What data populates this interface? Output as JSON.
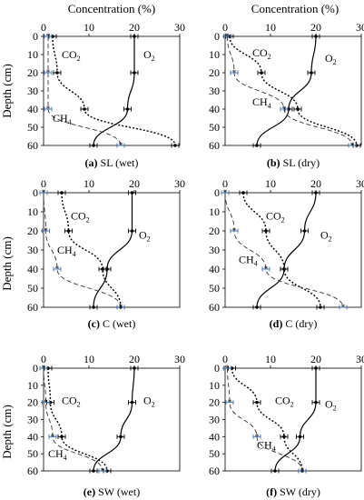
{
  "figure": {
    "top_axis_label": "Concentration (%)",
    "y_axis_label": "Depth (cm)",
    "series_labels": {
      "co2": "CO2",
      "o2": "O2",
      "ch4": "CH4"
    }
  },
  "chart_data": [
    {
      "type": "line",
      "caption": {
        "letter": "(a)",
        "text": "SL (wet)"
      },
      "xlim": [
        0,
        30
      ],
      "ylim": [
        0,
        60
      ],
      "x_ticks": [
        0,
        10,
        20,
        30
      ],
      "y_ticks": [
        0,
        10,
        20,
        30,
        40,
        50,
        60
      ],
      "series": [
        {
          "name": "O2",
          "depth": [
            0,
            20,
            40,
            60
          ],
          "values": [
            20,
            20,
            18.5,
            11
          ]
        },
        {
          "name": "CO2",
          "depth": [
            0,
            20,
            40,
            60
          ],
          "values": [
            2,
            3,
            9,
            29
          ]
        },
        {
          "name": "CH4",
          "depth": [
            0,
            20,
            40,
            60
          ],
          "values": [
            1,
            1,
            1,
            17
          ]
        }
      ]
    },
    {
      "type": "line",
      "caption": {
        "letter": "(b)",
        "text": "SL (dry)"
      },
      "xlim": [
        0,
        30
      ],
      "ylim": [
        0,
        60
      ],
      "x_ticks": [
        0,
        10,
        20,
        30
      ],
      "y_ticks": [
        0,
        10,
        20,
        30,
        40,
        50,
        60
      ],
      "series": [
        {
          "name": "O2",
          "depth": [
            0,
            20,
            40,
            60
          ],
          "values": [
            20,
            19,
            14,
            7
          ]
        },
        {
          "name": "CO2",
          "depth": [
            0,
            20,
            40,
            60
          ],
          "values": [
            1,
            8,
            16,
            29
          ]
        },
        {
          "name": "CH4",
          "depth": [
            0,
            20,
            40,
            60
          ],
          "values": [
            0.5,
            2,
            13,
            28
          ]
        }
      ]
    },
    {
      "type": "line",
      "caption": {
        "letter": "(c)",
        "text": "C (wet)"
      },
      "xlim": [
        0,
        30
      ],
      "ylim": [
        0,
        60
      ],
      "x_ticks": [
        0,
        10,
        20,
        30
      ],
      "y_ticks": [
        0,
        10,
        20,
        30,
        40,
        50,
        60
      ],
      "series": [
        {
          "name": "O2",
          "depth": [
            0,
            20,
            40,
            60
          ],
          "values": [
            19.5,
            19.5,
            14,
            11
          ]
        },
        {
          "name": "CO2",
          "depth": [
            0,
            20,
            40,
            60
          ],
          "values": [
            4,
            5.5,
            13,
            17
          ]
        },
        {
          "name": "CH4",
          "depth": [
            0,
            20,
            40,
            60
          ],
          "values": [
            0,
            0.5,
            3,
            17
          ]
        }
      ]
    },
    {
      "type": "line",
      "caption": {
        "letter": "(d)",
        "text": "C (dry)"
      },
      "xlim": [
        0,
        30
      ],
      "ylim": [
        0,
        60
      ],
      "x_ticks": [
        0,
        10,
        20,
        30
      ],
      "y_ticks": [
        0,
        10,
        20,
        30,
        40,
        50,
        60
      ],
      "series": [
        {
          "name": "O2",
          "depth": [
            0,
            20,
            40,
            60
          ],
          "values": [
            20,
            17.5,
            13,
            7
          ]
        },
        {
          "name": "CO2",
          "depth": [
            0,
            20,
            40,
            60
          ],
          "values": [
            4,
            9,
            13,
            21
          ]
        },
        {
          "name": "CH4",
          "depth": [
            0,
            20,
            40,
            60
          ],
          "values": [
            0,
            2,
            9,
            26
          ]
        }
      ]
    },
    {
      "type": "line",
      "caption": {
        "letter": "(e)",
        "text": "SW (wet)"
      },
      "xlim": [
        0,
        30
      ],
      "ylim": [
        0,
        60
      ],
      "x_ticks": [
        0,
        10,
        20,
        30
      ],
      "y_ticks": [
        0,
        10,
        20,
        30,
        40,
        50,
        60
      ],
      "series": [
        {
          "name": "O2",
          "depth": [
            0,
            20,
            40,
            60
          ],
          "values": [
            20,
            19.5,
            17,
            11
          ]
        },
        {
          "name": "CO2",
          "depth": [
            0,
            20,
            40,
            60
          ],
          "values": [
            1,
            1.5,
            4,
            14
          ]
        },
        {
          "name": "CH4",
          "depth": [
            0,
            20,
            40,
            60
          ],
          "values": [
            0,
            0.5,
            2,
            13
          ]
        }
      ]
    },
    {
      "type": "line",
      "caption": {
        "letter": "(f)",
        "text": "SW (dry)"
      },
      "xlim": [
        0,
        30
      ],
      "ylim": [
        0,
        60
      ],
      "x_ticks": [
        0,
        10,
        20,
        30
      ],
      "y_ticks": [
        0,
        10,
        20,
        30,
        40,
        50,
        60
      ],
      "series": [
        {
          "name": "O2",
          "depth": [
            0,
            20,
            40,
            60
          ],
          "values": [
            20,
            20,
            16.5,
            11
          ]
        },
        {
          "name": "CO2",
          "depth": [
            0,
            20,
            40,
            60
          ],
          "values": [
            1.5,
            7,
            13,
            17
          ]
        },
        {
          "name": "CH4",
          "depth": [
            0,
            20,
            40,
            60
          ],
          "values": [
            0.5,
            1,
            7,
            17
          ]
        }
      ]
    }
  ]
}
